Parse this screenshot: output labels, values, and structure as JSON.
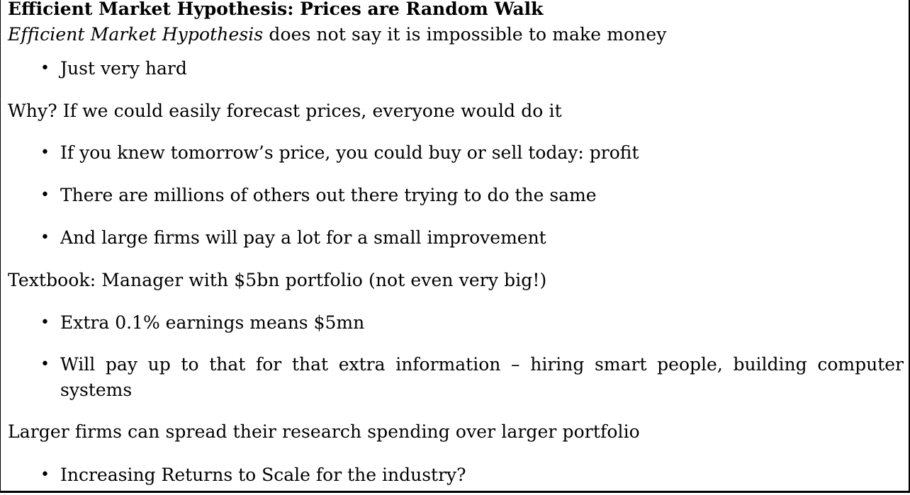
{
  "slide": {
    "title": "Efficient Market Hypothesis: Prices are Random Walk",
    "intro": {
      "italic": "Efficient Market Hypothesis",
      "rest": " does not say it is impossible to make money"
    },
    "intro_bullets": [
      "Just very hard"
    ],
    "why": "Why? If we could easily forecast prices, everyone would do it",
    "why_bullets": [
      "If you knew tomorrow’s price, you could buy or sell today: profit",
      "There are millions of others out there trying to do the same",
      "And large firms will pay a lot for a small improvement"
    ],
    "textbook": "Textbook: Manager with $5bn portfolio (not even very big!)",
    "textbook_bullets": [
      "Extra 0.1% earnings means $5mn",
      "Will pay up to that for that extra information – hiring smart people, building computer systems"
    ],
    "larger": "Larger firms can spread their research spending over larger portfolio",
    "larger_bullets": [
      "Increasing Returns to Scale for the industry?"
    ]
  }
}
